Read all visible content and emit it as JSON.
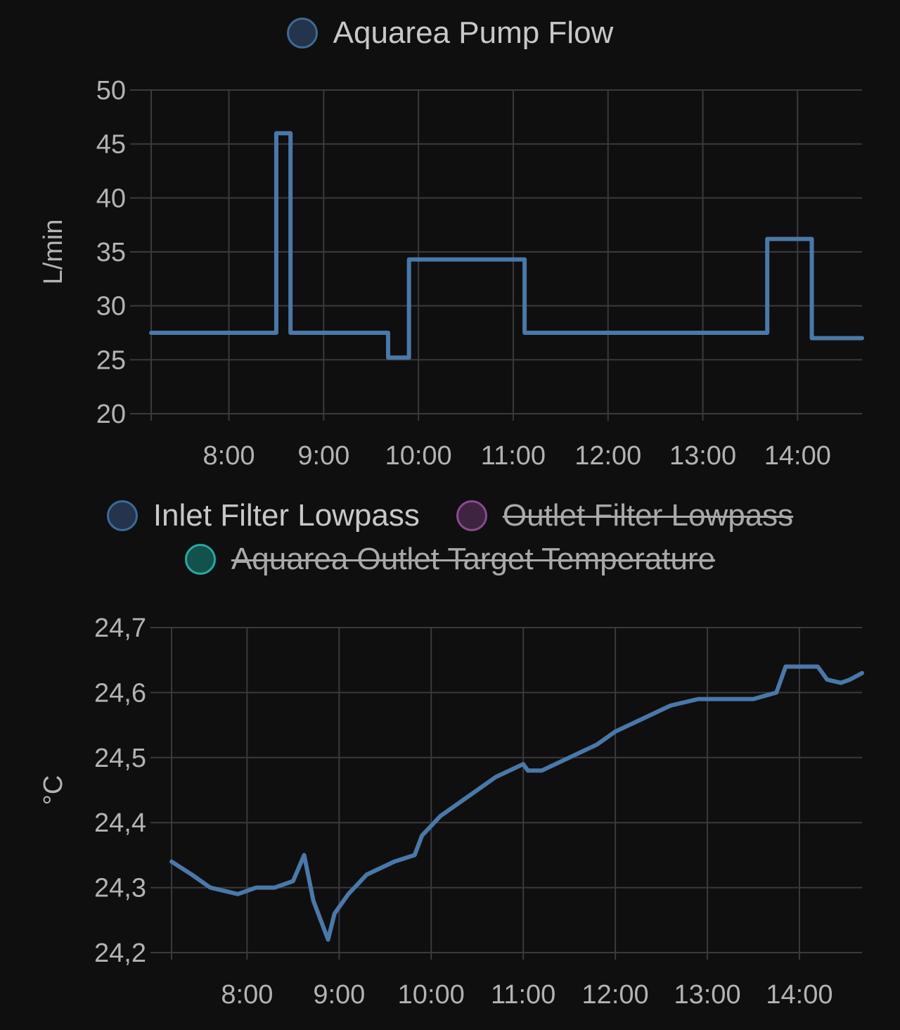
{
  "chart_data": [
    {
      "type": "line",
      "legend": [
        {
          "name": "Aquarea Pump Flow",
          "color": "#3e6a96",
          "fill": "#23344c",
          "hidden": false
        }
      ],
      "ylabel": "L/min",
      "ylim": [
        20,
        50
      ],
      "yticks": [
        "20",
        "25",
        "30",
        "35",
        "40",
        "45",
        "50"
      ],
      "xlim": [
        7.18,
        14.68
      ],
      "xticks": [
        {
          "label": "8:00",
          "value": 8
        },
        {
          "label": "9:00",
          "value": 9
        },
        {
          "label": "10:00",
          "value": 10
        },
        {
          "label": "11:00",
          "value": 11
        },
        {
          "label": "12:00",
          "value": 12
        },
        {
          "label": "13:00",
          "value": 13
        },
        {
          "label": "14:00",
          "value": 14
        }
      ],
      "series": [
        {
          "name": "Aquarea Pump Flow",
          "color": "#4a78a8",
          "step": true,
          "x": [
            7.18,
            8.5,
            8.65,
            9.68,
            9.9,
            11.12,
            13.68,
            14.15,
            14.68
          ],
          "y": [
            27.5,
            46,
            27.5,
            25.2,
            34.3,
            27.5,
            36.2,
            27,
            27
          ]
        }
      ]
    },
    {
      "type": "line",
      "legend": [
        {
          "name": "Inlet Filter Lowpass",
          "color": "#3e6a96",
          "fill": "#23344c",
          "hidden": false
        },
        {
          "name": "Outlet Filter Lowpass",
          "color": "#8a4a8e",
          "fill": "#3f2442",
          "hidden": true
        },
        {
          "name": "Aquarea Outlet Target Temperature",
          "color": "#2aa8a0",
          "fill": "#13514d",
          "hidden": true
        }
      ],
      "ylabel": "°C",
      "ylim": [
        24.2,
        24.7
      ],
      "yticks": [
        "24,2",
        "24,3",
        "24,4",
        "24,5",
        "24,6",
        "24,7"
      ],
      "xlim": [
        7.18,
        14.68
      ],
      "xticks": [
        {
          "label": "8:00",
          "value": 8
        },
        {
          "label": "9:00",
          "value": 9
        },
        {
          "label": "10:00",
          "value": 10
        },
        {
          "label": "11:00",
          "value": 11
        },
        {
          "label": "12:00",
          "value": 12
        },
        {
          "label": "13:00",
          "value": 13
        },
        {
          "label": "14:00",
          "value": 14
        }
      ],
      "series": [
        {
          "name": "Inlet Filter Lowpass",
          "color": "#4a78a8",
          "step": false,
          "x": [
            7.18,
            7.4,
            7.6,
            7.9,
            8.1,
            8.3,
            8.5,
            8.62,
            8.72,
            8.8,
            8.88,
            8.95,
            9.1,
            9.3,
            9.6,
            9.82,
            9.9,
            10.1,
            10.4,
            10.7,
            11.0,
            11.05,
            11.2,
            11.5,
            11.8,
            12.0,
            12.3,
            12.6,
            12.9,
            13.2,
            13.5,
            13.75,
            13.85,
            14.05,
            14.2,
            14.3,
            14.45,
            14.55,
            14.68
          ],
          "y": [
            24.34,
            24.32,
            24.3,
            24.29,
            24.3,
            24.3,
            24.31,
            24.35,
            24.28,
            24.25,
            24.22,
            24.26,
            24.29,
            24.32,
            24.34,
            24.35,
            24.38,
            24.41,
            24.44,
            24.47,
            24.49,
            24.48,
            24.48,
            24.5,
            24.52,
            24.54,
            24.56,
            24.58,
            24.59,
            24.59,
            24.59,
            24.6,
            24.64,
            24.64,
            24.64,
            24.62,
            24.615,
            24.62,
            24.63
          ]
        }
      ]
    }
  ]
}
